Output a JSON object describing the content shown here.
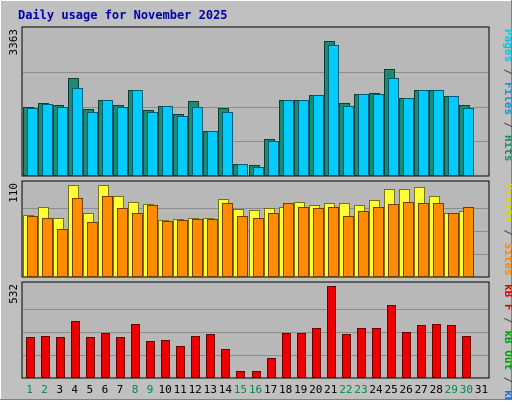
{
  "chart_data": {
    "type": "bar",
    "title": "Daily usage for November 2025",
    "categories": [
      "1",
      "2",
      "3",
      "4",
      "5",
      "6",
      "7",
      "8",
      "9",
      "10",
      "11",
      "12",
      "13",
      "14",
      "15",
      "16",
      "17",
      "18",
      "19",
      "20",
      "21",
      "22",
      "23",
      "24",
      "25",
      "26",
      "27",
      "28",
      "29",
      "30",
      "31"
    ],
    "weekend_days": [
      "1",
      "2",
      "8",
      "9",
      "15",
      "16",
      "22",
      "23",
      "29",
      "30"
    ],
    "panels": [
      {
        "id": "hits",
        "ymax_label": "3363",
        "ylim": [
          0,
          3363
        ],
        "side_label": [
          {
            "text": "Pages",
            "color": "#00c8e8"
          },
          {
            "text": " / ",
            "color": "#444444"
          },
          {
            "text": "Files",
            "color": "#1a8fd6"
          },
          {
            "text": " / ",
            "color": "#444444"
          },
          {
            "text": "Hits",
            "color": "#1b8a6e"
          }
        ],
        "series": [
          {
            "name": "Hits",
            "color": "#1d8a74",
            "values": [
              1660,
              1760,
              1710,
              2360,
              1620,
              1850,
              1710,
              2080,
              1600,
              1700,
              1500,
              1820,
              1100,
              1640,
              291,
              263,
              884,
              1850,
              1840,
              1960,
              3263,
              1760,
              1990,
              2000,
              2600,
              1880,
              2080,
              2090,
              1930,
              1710,
              0
            ]
          },
          {
            "name": "Files",
            "color": "#00ccff",
            "values": [
              1650,
              1740,
              1670,
              2140,
              1560,
              1840,
              1660,
              2080,
              1560,
              1700,
              1460,
              1660,
              1080,
              1560,
              291,
              222,
              850,
              1840,
              1830,
              1960,
              3180,
              1700,
              1980,
              1990,
              2360,
              1880,
              2080,
              2090,
              1930,
              1650,
              0
            ]
          }
        ]
      },
      {
        "id": "visits",
        "ymax_label": "110",
        "ylim": [
          0,
          110
        ],
        "side_label": [
          {
            "text": "Visits",
            "color": "#d8d800"
          },
          {
            "text": " / ",
            "color": "#444444"
          },
          {
            "text": "Sites",
            "color": "#ff8800"
          }
        ],
        "series": [
          {
            "name": "Visits",
            "color": "#ffff33",
            "values": [
              74,
              84,
              70,
              110,
              76,
              110,
              97,
              90,
              87,
              68,
              69,
              70,
              70,
              93,
              81,
              80,
              83,
              84,
              90,
              86,
              88,
              88,
              86,
              92,
              105,
              105,
              108,
              97,
              76,
              79,
              0
            ]
          },
          {
            "name": "Sites",
            "color": "#ff8c00",
            "values": [
              73,
              70,
              57,
              94,
              66,
              97,
              82,
              76,
              86,
              67,
              68,
              69,
              69,
              89,
              73,
              70,
              76,
              89,
              84,
              82,
              84,
              73,
              79,
              84,
              87,
              90,
              88,
              88,
              76,
              84,
              0
            ]
          }
        ]
      },
      {
        "id": "kbytes",
        "ymax_label": "532",
        "ylim": [
          0,
          532
        ],
        "side_label": [
          {
            "text": "kB F",
            "color": "#e00000"
          },
          {
            "text": " / ",
            "color": "#444444"
          },
          {
            "text": "kB Out",
            "color": "#00a000"
          },
          {
            "text": " / ",
            "color": "#444444"
          },
          {
            "text": "kB In",
            "color": "#1a6fd6"
          }
        ],
        "series": [
          {
            "name": "kB F",
            "color": "#ee0000",
            "values": [
              236,
              242,
              236,
              330,
              236,
              263,
              236,
              312,
              215,
              221,
              187,
              242,
              252,
              169,
              38,
              38,
              117,
              263,
              263,
              288,
              532,
              252,
              292,
              292,
              424,
              267,
              308,
              312,
              308,
              242,
              0
            ]
          }
        ]
      }
    ]
  }
}
